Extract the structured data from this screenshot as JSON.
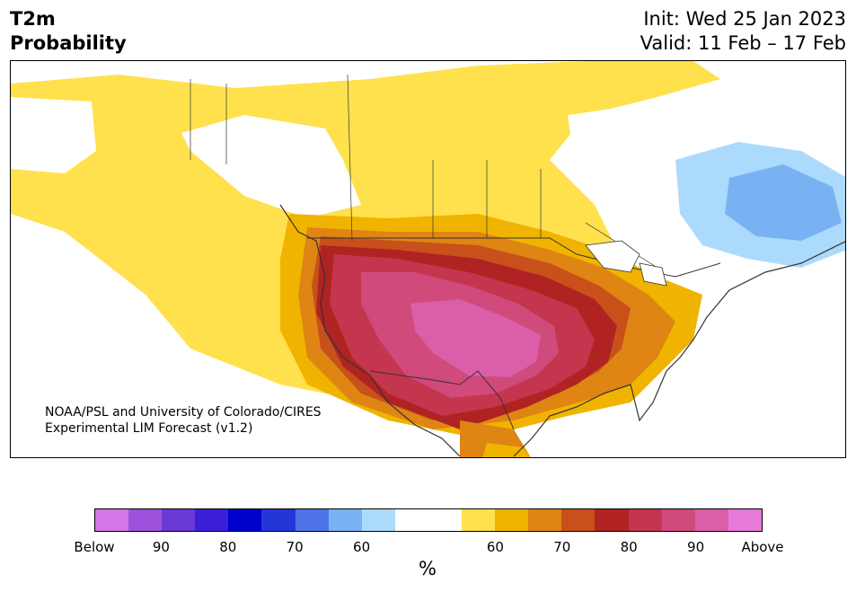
{
  "header": {
    "variable": "T2m",
    "product": "Probability",
    "init_line": "Init: Wed 25 Jan 2023",
    "valid_line": "Valid: 11 Feb – 17 Feb"
  },
  "map": {
    "region": "North America",
    "credit_line1": "NOAA/PSL and University of Colorado/CIRES",
    "credit_line2": "Experimental LIM Forecast (v1.2)"
  },
  "colorbar": {
    "unit": "%",
    "colors": [
      "#d675e8",
      "#9c52dd",
      "#6b39d6",
      "#3c1fd8",
      "#0000cc",
      "#2536d8",
      "#4f73e8",
      "#78b2f2",
      "#acdafc",
      "#ffffff",
      "#ffffff",
      "#ffe14d",
      "#f0b400",
      "#de8513",
      "#c8501a",
      "#b02322",
      "#c4364e",
      "#d04a7c",
      "#db5fa8",
      "#e87adb"
    ],
    "tick_labels": [
      "Below",
      "90",
      "80",
      "70",
      "60",
      "60",
      "70",
      "80",
      "90",
      "Above"
    ]
  },
  "legend_colors": {
    "below_60": "#acdafc",
    "below_70": "#78b2f2",
    "above_60": "#ffe14d",
    "above_70": "#f0b400",
    "above_80": "#de8513",
    "above_90": "#c8501a",
    "above_high": "#b02322",
    "above_higher": "#c4364e",
    "above_peak": "#d04a7c",
    "above_max": "#db5fa8"
  }
}
